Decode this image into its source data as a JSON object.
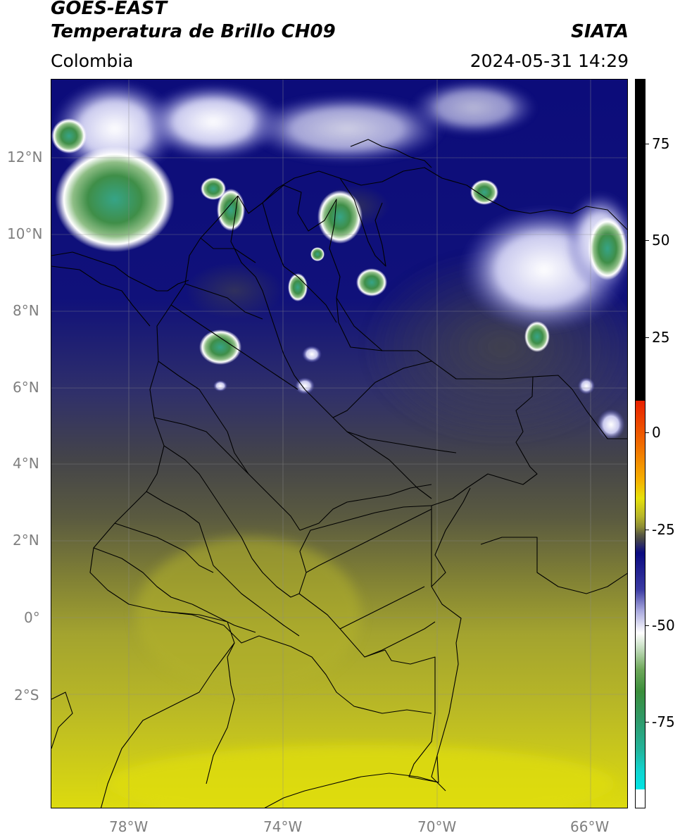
{
  "header": {
    "title_line1": "GOES-EAST",
    "title_line2": "Temperatura de Brillo CH09",
    "brand": "SIATA",
    "region": "Colombia",
    "timestamp": "2024-05-31 14:29"
  },
  "map": {
    "lon_range": [
      -80,
      -65
    ],
    "lat_range": [
      -5,
      14
    ],
    "lat_ticks": [
      "12°N",
      "10°N",
      "8°N",
      "6°N",
      "4°N",
      "2°N",
      "0°",
      "2°S"
    ],
    "lon_ticks": [
      "78°W",
      "74°W",
      "70°W",
      "66°W"
    ],
    "grid": true,
    "borders": "country and department boundaries (black lines)",
    "gridline_color": "#8c8c8c"
  },
  "colorbar": {
    "tick_labels": [
      "75",
      "50",
      "25",
      "0",
      "-25",
      "-50",
      "-75"
    ],
    "colors": {
      "top_black": "#000000",
      "red": "#e82000",
      "orange": "#f08a00",
      "yellow": "#e6e10a",
      "olive": "#a3a32f",
      "gray": "#444449",
      "navy": "#0a0a80",
      "white": "#ffffff",
      "green": "#3b8e3b",
      "teal": "#22b39a",
      "cyan": "#00e4e4"
    }
  }
}
